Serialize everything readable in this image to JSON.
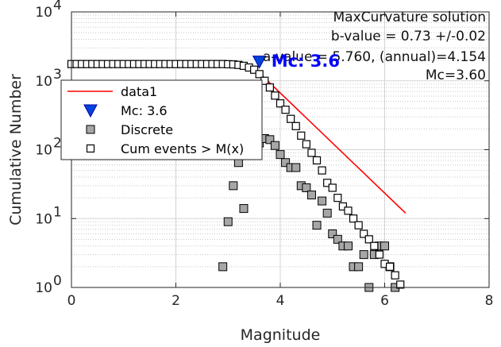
{
  "chart_data": {
    "type": "scatter",
    "title": "",
    "xlabel": "Magnitude",
    "ylabel": "Cumulative Number",
    "xlim": [
      0,
      8
    ],
    "ylim": [
      1,
      10000
    ],
    "yscale": "log",
    "grid": true,
    "x_ticks": [
      "0",
      "2",
      "4",
      "6",
      "8"
    ],
    "y_ticks": [
      {
        "base": "10",
        "exp": "0"
      },
      {
        "base": "10",
        "exp": "1"
      },
      {
        "base": "10",
        "exp": "2"
      },
      {
        "base": "10",
        "exp": "3"
      },
      {
        "base": "10",
        "exp": "4"
      }
    ],
    "legend_position": "upper-left",
    "annotations": [
      "MaxCurvature solution",
      "b-value = 0.73 +/-0.02",
      "a-value = 5.760, (annual)=4.154",
      "Mc=3.60"
    ],
    "mc_label": "Mc: 3.6",
    "series": [
      {
        "name": "data1",
        "kind": "line",
        "color": "#ff0000",
        "x": [
          3.6,
          6.4
        ],
        "y": [
          1300,
          12
        ]
      },
      {
        "name": "Mc: 3.6",
        "kind": "marker-triangle-down",
        "color": "#0044dd",
        "x": [
          3.6
        ],
        "y": [
          1900
        ]
      },
      {
        "name": "Discrete",
        "kind": "marker-square-filled",
        "color": "#a6a6a6",
        "x": [
          2.9,
          3.0,
          3.1,
          3.2,
          3.3,
          3.4,
          3.5,
          3.6,
          3.7,
          3.8,
          3.9,
          4.0,
          4.1,
          4.2,
          4.3,
          4.4,
          4.5,
          4.6,
          4.7,
          4.8,
          4.9,
          5.0,
          5.1,
          5.2,
          5.3,
          5.4,
          5.5,
          5.6,
          5.7,
          5.8,
          5.9,
          6.0,
          6.1,
          6.2
        ],
        "y": [
          2,
          9,
          30,
          65,
          14,
          110,
          135,
          125,
          145,
          140,
          115,
          85,
          65,
          55,
          55,
          30,
          28,
          22,
          8,
          18,
          12,
          6,
          5,
          4,
          4,
          2,
          2,
          3,
          1,
          3,
          4,
          4,
          2,
          1
        ]
      },
      {
        "name": "Cum events > M(x)",
        "kind": "marker-square-open",
        "color": "#000000",
        "x": [
          0.0,
          0.1,
          0.2,
          0.3,
          0.4,
          0.5,
          0.6,
          0.7,
          0.8,
          0.9,
          1.0,
          1.1,
          1.2,
          1.3,
          1.4,
          1.5,
          1.6,
          1.7,
          1.8,
          1.9,
          2.0,
          2.1,
          2.2,
          2.3,
          2.4,
          2.5,
          2.6,
          2.7,
          2.8,
          2.9,
          3.0,
          3.1,
          3.2,
          3.3,
          3.4,
          3.5,
          3.6,
          3.7,
          3.8,
          3.9,
          4.0,
          4.1,
          4.2,
          4.3,
          4.4,
          4.5,
          4.6,
          4.7,
          4.8,
          4.9,
          5.0,
          5.1,
          5.2,
          5.3,
          5.4,
          5.5,
          5.6,
          5.7,
          5.8,
          5.9,
          6.0,
          6.1,
          6.2,
          6.3
        ],
        "y": [
          1750,
          1750,
          1750,
          1750,
          1750,
          1750,
          1750,
          1750,
          1750,
          1750,
          1750,
          1750,
          1750,
          1750,
          1750,
          1750,
          1750,
          1750,
          1750,
          1750,
          1750,
          1750,
          1750,
          1750,
          1750,
          1750,
          1750,
          1750,
          1750,
          1750,
          1740,
          1730,
          1700,
          1650,
          1560,
          1450,
          1250,
          1000,
          800,
          610,
          470,
          380,
          280,
          220,
          160,
          120,
          90,
          70,
          50,
          33,
          28,
          20,
          15,
          13,
          10,
          8,
          6,
          5,
          4,
          3,
          2.2,
          2,
          1.5,
          1.1
        ]
      }
    ]
  }
}
